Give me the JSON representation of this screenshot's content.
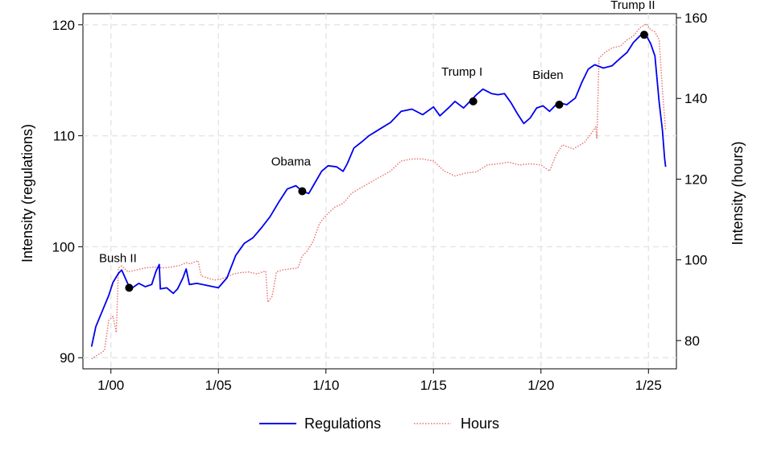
{
  "chart_data": {
    "type": "line",
    "x_ticks": [
      "1/00",
      "1/05",
      "1/10",
      "1/15",
      "1/20",
      "1/25"
    ],
    "y_left": {
      "label": "Intensity (regulations)",
      "ticks": [
        "90",
        "100",
        "110",
        "120"
      ],
      "range": [
        89,
        121
      ]
    },
    "y_right": {
      "label": "Intensity (hours)",
      "ticks": [
        "80",
        "100",
        "120",
        "140",
        "160"
      ],
      "range": [
        73,
        161
      ]
    },
    "x_range": [
      1998.7,
      2026.3
    ],
    "grid": true,
    "legend_position": "bottom",
    "series": [
      {
        "name": "Regulations",
        "axis": "left",
        "color": "#0000ee",
        "points": [
          [
            1999.1,
            91.0
          ],
          [
            1999.3,
            92.8
          ],
          [
            1999.6,
            94.2
          ],
          [
            1999.9,
            95.6
          ],
          [
            2000.1,
            96.8
          ],
          [
            2000.35,
            97.6
          ],
          [
            2000.5,
            97.9
          ],
          [
            2000.8,
            96.6
          ],
          [
            2001.0,
            96.3
          ],
          [
            2001.3,
            96.7
          ],
          [
            2001.6,
            96.4
          ],
          [
            2001.9,
            96.6
          ],
          [
            2002.1,
            97.8
          ],
          [
            2002.25,
            98.4
          ],
          [
            2002.3,
            96.2
          ],
          [
            2002.6,
            96.3
          ],
          [
            2002.9,
            95.8
          ],
          [
            2003.1,
            96.2
          ],
          [
            2003.35,
            97.2
          ],
          [
            2003.5,
            98.0
          ],
          [
            2003.65,
            96.6
          ],
          [
            2004.0,
            96.7
          ],
          [
            2004.5,
            96.5
          ],
          [
            2005.0,
            96.3
          ],
          [
            2005.4,
            97.2
          ],
          [
            2005.8,
            99.2
          ],
          [
            2006.2,
            100.3
          ],
          [
            2006.6,
            100.8
          ],
          [
            2007.0,
            101.7
          ],
          [
            2007.4,
            102.7
          ],
          [
            2007.8,
            104.0
          ],
          [
            2008.2,
            105.2
          ],
          [
            2008.6,
            105.5
          ],
          [
            2008.9,
            105.0
          ],
          [
            2009.2,
            104.8
          ],
          [
            2009.5,
            105.8
          ],
          [
            2009.8,
            106.8
          ],
          [
            2010.1,
            107.3
          ],
          [
            2010.5,
            107.2
          ],
          [
            2010.8,
            106.8
          ],
          [
            2011.0,
            107.5
          ],
          [
            2011.3,
            108.9
          ],
          [
            2011.7,
            109.5
          ],
          [
            2012.0,
            110.0
          ],
          [
            2012.5,
            110.6
          ],
          [
            2013.0,
            111.2
          ],
          [
            2013.5,
            112.2
          ],
          [
            2014.0,
            112.4
          ],
          [
            2014.5,
            111.9
          ],
          [
            2015.0,
            112.6
          ],
          [
            2015.3,
            111.8
          ],
          [
            2015.7,
            112.5
          ],
          [
            2016.0,
            113.1
          ],
          [
            2016.4,
            112.5
          ],
          [
            2016.8,
            113.3
          ],
          [
            2017.0,
            113.7
          ],
          [
            2017.3,
            114.2
          ],
          [
            2017.7,
            113.8
          ],
          [
            2018.0,
            113.7
          ],
          [
            2018.3,
            113.8
          ],
          [
            2018.6,
            113.0
          ],
          [
            2018.9,
            112.0
          ],
          [
            2019.2,
            111.1
          ],
          [
            2019.5,
            111.6
          ],
          [
            2019.8,
            112.5
          ],
          [
            2020.1,
            112.7
          ],
          [
            2020.4,
            112.2
          ],
          [
            2020.8,
            113.0
          ],
          [
            2021.2,
            112.8
          ],
          [
            2021.6,
            113.4
          ],
          [
            2021.9,
            114.8
          ],
          [
            2022.2,
            116.0
          ],
          [
            2022.5,
            116.4
          ],
          [
            2022.9,
            116.1
          ],
          [
            2023.3,
            116.3
          ],
          [
            2023.7,
            117.0
          ],
          [
            2024.0,
            117.5
          ],
          [
            2024.3,
            118.4
          ],
          [
            2024.6,
            119.0
          ],
          [
            2024.85,
            119.2
          ],
          [
            2025.1,
            118.3
          ],
          [
            2025.3,
            117.2
          ],
          [
            2025.5,
            113.0
          ],
          [
            2025.65,
            110.5
          ],
          [
            2025.75,
            108.0
          ],
          [
            2025.8,
            107.2
          ]
        ]
      },
      {
        "name": "Hours",
        "axis": "right",
        "color": "#e8706b",
        "points": [
          [
            1999.1,
            75.5
          ],
          [
            1999.4,
            76.5
          ],
          [
            1999.7,
            77.5
          ],
          [
            1999.9,
            85.0
          ],
          [
            2000.1,
            86.0
          ],
          [
            2000.25,
            82.0
          ],
          [
            2000.35,
            98.0
          ],
          [
            2000.5,
            98.5
          ],
          [
            2000.8,
            97.0
          ],
          [
            2001.2,
            97.5
          ],
          [
            2001.6,
            98.0
          ],
          [
            2002.0,
            98.2
          ],
          [
            2002.4,
            98.0
          ],
          [
            2002.8,
            98.2
          ],
          [
            2003.2,
            98.6
          ],
          [
            2003.5,
            99.3
          ],
          [
            2003.7,
            99.0
          ],
          [
            2003.9,
            99.5
          ],
          [
            2004.05,
            99.8
          ],
          [
            2004.2,
            96.0
          ],
          [
            2004.5,
            95.5
          ],
          [
            2004.8,
            95.0
          ],
          [
            2005.1,
            95.2
          ],
          [
            2005.4,
            95.8
          ],
          [
            2005.7,
            96.5
          ],
          [
            2006.0,
            96.8
          ],
          [
            2006.4,
            97.0
          ],
          [
            2006.8,
            96.5
          ],
          [
            2007.0,
            96.9
          ],
          [
            2007.2,
            97.2
          ],
          [
            2007.3,
            89.5
          ],
          [
            2007.5,
            91.0
          ],
          [
            2007.7,
            97.0
          ],
          [
            2008.0,
            97.5
          ],
          [
            2008.4,
            97.8
          ],
          [
            2008.7,
            98.0
          ],
          [
            2008.9,
            101.0
          ],
          [
            2009.1,
            102.0
          ],
          [
            2009.4,
            104.5
          ],
          [
            2009.7,
            109.0
          ],
          [
            2010.0,
            111.0
          ],
          [
            2010.4,
            113.0
          ],
          [
            2010.8,
            114.0
          ],
          [
            2011.2,
            116.5
          ],
          [
            2011.6,
            117.8
          ],
          [
            2012.0,
            119.0
          ],
          [
            2012.5,
            120.5
          ],
          [
            2013.0,
            122.0
          ],
          [
            2013.5,
            124.5
          ],
          [
            2014.0,
            125.0
          ],
          [
            2014.5,
            125.0
          ],
          [
            2015.0,
            124.5
          ],
          [
            2015.5,
            122.0
          ],
          [
            2016.0,
            120.8
          ],
          [
            2016.5,
            121.5
          ],
          [
            2017.0,
            121.8
          ],
          [
            2017.5,
            123.5
          ],
          [
            2018.0,
            123.8
          ],
          [
            2018.5,
            124.2
          ],
          [
            2019.0,
            123.5
          ],
          [
            2019.5,
            123.8
          ],
          [
            2020.0,
            123.5
          ],
          [
            2020.4,
            122.0
          ],
          [
            2020.7,
            126.0
          ],
          [
            2021.0,
            128.5
          ],
          [
            2021.5,
            127.5
          ],
          [
            2022.0,
            129.0
          ],
          [
            2022.3,
            131.0
          ],
          [
            2022.55,
            133.0
          ],
          [
            2022.6,
            130.0
          ],
          [
            2022.7,
            150.0
          ],
          [
            2023.0,
            151.5
          ],
          [
            2023.3,
            152.5
          ],
          [
            2023.7,
            153.0
          ],
          [
            2024.0,
            154.5
          ],
          [
            2024.3,
            155.5
          ],
          [
            2024.6,
            157.5
          ],
          [
            2024.9,
            158.5
          ],
          [
            2025.1,
            157.0
          ],
          [
            2025.3,
            156.5
          ],
          [
            2025.5,
            154.5
          ],
          [
            2025.65,
            142.0
          ],
          [
            2025.8,
            132.0
          ]
        ]
      }
    ],
    "events": [
      {
        "label": "Bush II",
        "x": 2000.85,
        "y": 96.3
      },
      {
        "label": "Obama",
        "x": 2008.9,
        "y": 105.0
      },
      {
        "label": "Trump I",
        "x": 2016.85,
        "y": 113.1
      },
      {
        "label": "Biden",
        "x": 2020.85,
        "y": 112.8
      },
      {
        "label": "Trump II",
        "x": 2024.8,
        "y": 119.1
      }
    ]
  }
}
